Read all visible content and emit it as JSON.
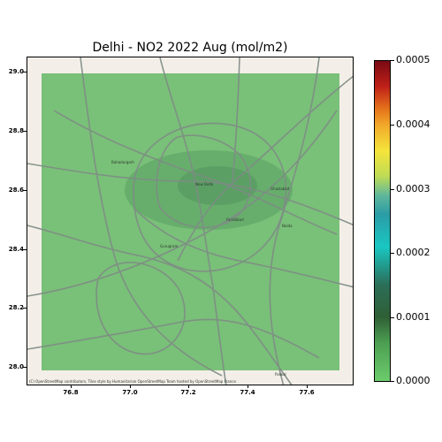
{
  "title": "Delhi - NO2 2022 Aug (mol/m2)",
  "attribution": "(C) OpenStreetMap contributors, Tiles style by Humanitarian OpenStreetMap Team hosted by OpenStreetMap France",
  "map": {
    "x_ticks": [
      "76.8",
      "77.0",
      "77.2",
      "77.4",
      "77.6"
    ],
    "y_ticks": [
      "29.0",
      "28.8",
      "28.6",
      "28.4",
      "28.2",
      "28.0"
    ],
    "x_range": [
      76.7,
      77.83
    ],
    "y_range": [
      27.95,
      29.05
    ],
    "data_extent": {
      "lon": [
        76.75,
        77.72
      ],
      "lat": [
        28.0,
        29.0
      ]
    },
    "overlay_color": "#6cba6c",
    "place_labels": [
      "Bahadurgarh",
      "New Delhi",
      "Noida",
      "Gurugram",
      "Faridabad",
      "Ghaziabad",
      "Palwal"
    ]
  },
  "colorbar": {
    "labels": [
      "0.0005",
      "0.0004",
      "0.0003",
      "0.0002",
      "0.0001",
      "0.0000"
    ],
    "range": [
      0,
      0.0005
    ],
    "colormap": "green-teal-yellow-orange-red"
  }
}
